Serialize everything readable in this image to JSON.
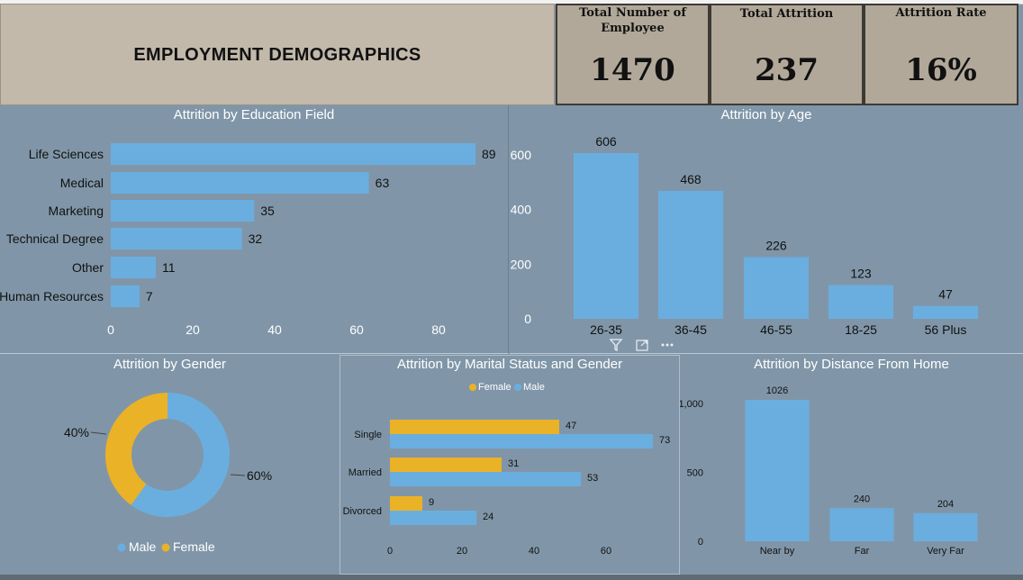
{
  "header": {
    "title": "EMPLOYMENT DEMOGRAPHICS"
  },
  "kpis": [
    {
      "label": "Total Number of Employee",
      "value": "1470"
    },
    {
      "label": "Total Attrition",
      "value": "237"
    },
    {
      "label": "Attrition Rate",
      "value": "16%"
    }
  ],
  "colors": {
    "blue": "#6aaee0",
    "orange": "#eab227",
    "panel": "#8096a8",
    "header": "#c2b9ab",
    "kpi": "#b1a899"
  },
  "chart_data": [
    {
      "id": "education",
      "type": "bar",
      "orientation": "horizontal",
      "title": "Attrition by Education Field",
      "categories": [
        "Life Sciences",
        "Medical",
        "Marketing",
        "Technical Degree",
        "Other",
        "Human Resources"
      ],
      "values": [
        89,
        63,
        35,
        32,
        11,
        7
      ],
      "xlim": [
        0,
        90
      ],
      "xticks": [
        0,
        20,
        40,
        60,
        80
      ]
    },
    {
      "id": "age",
      "type": "bar",
      "title": "Attrition by Age",
      "categories": [
        "26-35",
        "36-45",
        "46-55",
        "18-25",
        "56 Plus"
      ],
      "values": [
        606,
        468,
        226,
        123,
        47
      ],
      "ylim": [
        0,
        606
      ],
      "yticks": [
        0,
        200,
        400,
        600
      ]
    },
    {
      "id": "gender",
      "type": "pie",
      "donut": true,
      "title": "Attrition by Gender",
      "categories": [
        "Male",
        "Female"
      ],
      "values": [
        60,
        40
      ],
      "labels": [
        "60%",
        "40%"
      ],
      "legend": [
        "Male",
        "Female"
      ],
      "legend_position": "bottom"
    },
    {
      "id": "marital",
      "type": "bar",
      "orientation": "horizontal",
      "title": "Attrition by Marital Status and Gender",
      "categories": [
        "Single",
        "Married",
        "Divorced"
      ],
      "series": [
        {
          "name": "Female",
          "values": [
            47,
            31,
            9
          ]
        },
        {
          "name": "Male",
          "values": [
            73,
            53,
            24
          ]
        }
      ],
      "xlim": [
        0,
        73
      ],
      "xticks": [
        0,
        20,
        40,
        60
      ],
      "legend_position": "top"
    },
    {
      "id": "distance",
      "type": "bar",
      "title": "Attrition by Distance From Home",
      "categories": [
        "Near by",
        "Far",
        "Very Far"
      ],
      "values": [
        1026,
        240,
        204
      ],
      "ylim": [
        0,
        1026
      ],
      "yticks": [
        0,
        500,
        1000
      ],
      "ytick_labels": [
        "0",
        "500",
        "1,000"
      ]
    }
  ]
}
